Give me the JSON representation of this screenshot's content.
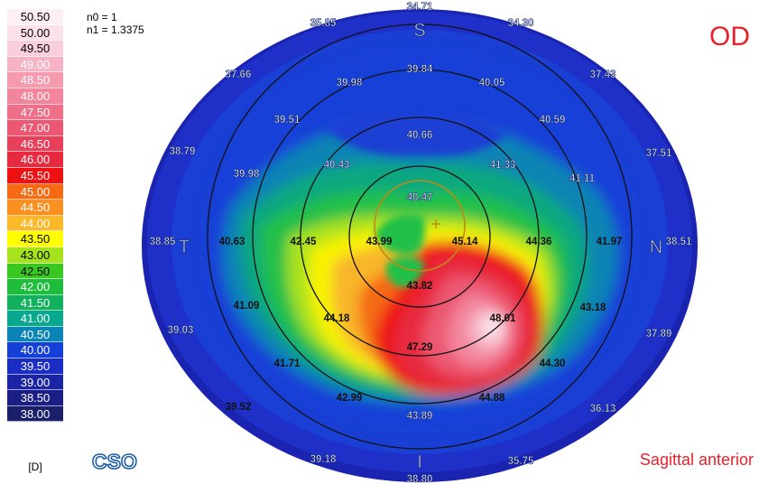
{
  "scale": {
    "steps": [
      {
        "label": "50.50",
        "color": "#fdf0f4",
        "text": "#000000"
      },
      {
        "label": "50.00",
        "color": "#fbe2ea",
        "text": "#000000"
      },
      {
        "label": "49.50",
        "color": "#f9cfdb",
        "text": "#000000"
      },
      {
        "label": "49.00",
        "color": "#f7b3c5",
        "text": "#ffffff"
      },
      {
        "label": "48.50",
        "color": "#f59aaf",
        "text": "#ffffff"
      },
      {
        "label": "48.00",
        "color": "#f2859c",
        "text": "#ffffff"
      },
      {
        "label": "47.50",
        "color": "#ef6f88",
        "text": "#ffffff"
      },
      {
        "label": "47.00",
        "color": "#ec5872",
        "text": "#ffffff"
      },
      {
        "label": "46.50",
        "color": "#e8405b",
        "text": "#ffffff"
      },
      {
        "label": "46.00",
        "color": "#e72a40",
        "text": "#ffffff"
      },
      {
        "label": "45.50",
        "color": "#ee1111",
        "text": "#ffffff"
      },
      {
        "label": "45.00",
        "color": "#f56a12",
        "text": "#ffffff"
      },
      {
        "label": "44.50",
        "color": "#fa9020",
        "text": "#ffffff"
      },
      {
        "label": "44.00",
        "color": "#fbb829",
        "text": "#ffffff"
      },
      {
        "label": "43.50",
        "color": "#ffff00",
        "text": "#000000"
      },
      {
        "label": "43.00",
        "color": "#a7e31c",
        "text": "#000000"
      },
      {
        "label": "42.50",
        "color": "#39c821",
        "text": "#000000"
      },
      {
        "label": "42.00",
        "color": "#1ebe3c",
        "text": "#ffffff"
      },
      {
        "label": "41.50",
        "color": "#11b25e",
        "text": "#ffffff"
      },
      {
        "label": "41.00",
        "color": "#07a88c",
        "text": "#ffffff"
      },
      {
        "label": "40.50",
        "color": "#0a84b4",
        "text": "#ffffff"
      },
      {
        "label": "40.00",
        "color": "#1540d8",
        "text": "#ffffff"
      },
      {
        "label": "39.50",
        "color": "#1a2ec6",
        "text": "#ffffff"
      },
      {
        "label": "39.00",
        "color": "#1b24a5",
        "text": "#ffffff"
      },
      {
        "label": "38.50",
        "color": "#1b1f85",
        "text": "#ffffff"
      },
      {
        "label": "38.00",
        "color": "#1a1f6a",
        "text": "#ffffff"
      }
    ],
    "unit": "[D]"
  },
  "params": {
    "n0": "n0 = 1",
    "n1": "n1 = 1.3375"
  },
  "eye": "OD",
  "map_type": "Sagittal anterior",
  "logo": "CSO",
  "orientation": {
    "superior": "S",
    "inferior": "I",
    "temporal": "T",
    "nasal": "N"
  },
  "values": [
    {
      "v": "34.71"
    },
    {
      "v": "35.85"
    },
    {
      "v": "34.30"
    },
    {
      "v": "37.66"
    },
    {
      "v": "37.43"
    },
    {
      "v": "39.98"
    },
    {
      "v": "39.84"
    },
    {
      "v": "40.05"
    },
    {
      "v": "39.51"
    },
    {
      "v": "40.59"
    },
    {
      "v": "38.79"
    },
    {
      "v": "37.51"
    },
    {
      "v": "40.66"
    },
    {
      "v": "39.98"
    },
    {
      "v": "40.43"
    },
    {
      "v": "41.33"
    },
    {
      "v": "41.11"
    },
    {
      "v": "40.47"
    },
    {
      "v": "38.85"
    },
    {
      "v": "40.63"
    },
    {
      "v": "42.45"
    },
    {
      "v": "43.99"
    },
    {
      "v": "45.14"
    },
    {
      "v": "44.36"
    },
    {
      "v": "41.97"
    },
    {
      "v": "38.51"
    },
    {
      "v": "43.82"
    },
    {
      "v": "41.09"
    },
    {
      "v": "43.18"
    },
    {
      "v": "44.18"
    },
    {
      "v": "48.01"
    },
    {
      "v": "39.03"
    },
    {
      "v": "37.89"
    },
    {
      "v": "47.29"
    },
    {
      "v": "41.71"
    },
    {
      "v": "44.30"
    },
    {
      "v": "42.99"
    },
    {
      "v": "44.88"
    },
    {
      "v": "39.52"
    },
    {
      "v": "43.89"
    },
    {
      "v": "36.13"
    },
    {
      "v": "39.18"
    },
    {
      "v": "35.75"
    },
    {
      "v": "38.80"
    }
  ]
}
